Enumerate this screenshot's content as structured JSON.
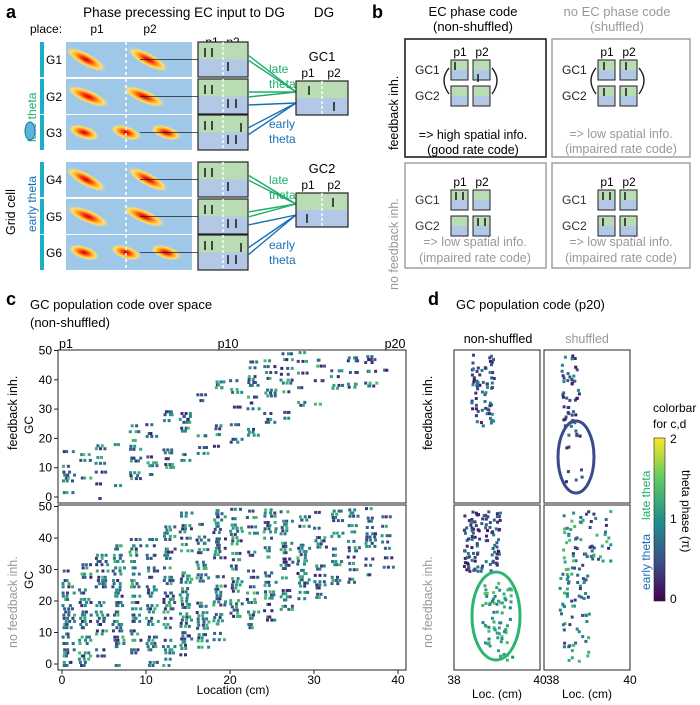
{
  "panel_a": {
    "label": "a",
    "title": "Phase precessing EC input to DG",
    "dg_title": "DG",
    "place_label": "place:",
    "p1": "p1",
    "p2": "p2",
    "grid_cell_label": "Grid cell",
    "early_theta": "early theta",
    "late_theta": "late theta",
    "groups": [
      "G1",
      "G2",
      "G3",
      "G4",
      "G5",
      "G6"
    ],
    "gc1": "GC1",
    "gc2": "GC2",
    "fan_late": "late theta",
    "fan_early": "early theta"
  },
  "panel_b": {
    "label": "b",
    "col1_title": "EC phase code",
    "col1_sub": "(non-shuffled)",
    "col2_title": "no EC phase code",
    "col2_sub": "(shuffled)",
    "row1_label": "feedback inh.",
    "row2_label": "no feedback inh.",
    "gc1": "GC1",
    "gc2": "GC2",
    "p1": "p1",
    "p2": "p2",
    "good_line1": "=> high spatial info.",
    "good_line2": "(good rate code)",
    "bad_line1": "=> low spatial info.",
    "bad_line2": "(impaired rate code)"
  },
  "panel_c": {
    "label": "c",
    "title": "GC population code over space",
    "subtitle": "(non-shuffled)",
    "top_marks": [
      "p1",
      "p10",
      "p20"
    ],
    "row1_label": "feedback inh.",
    "row2_label": "no feedback inh.",
    "ylabel": "GC",
    "xlabel": "Location (cm)",
    "xticks": [
      "0",
      "10",
      "20",
      "30",
      "40"
    ],
    "yticks": [
      "0",
      "10",
      "20",
      "30",
      "40",
      "50"
    ]
  },
  "panel_d": {
    "label": "d",
    "title": "GC population code (p20)",
    "col1": "non-shuffled",
    "col2": "shuffled",
    "xlabel": "Loc. (cm)",
    "xticks": [
      "38",
      "40"
    ],
    "colorbar_title1": "colorbar",
    "colorbar_title2": "for c,d",
    "colorbar_ticks": [
      "0",
      "1",
      "2"
    ],
    "colorbar_axis": "theta phase (π)",
    "colorbar_early": "early theta",
    "colorbar_late": "late theta"
  },
  "colors": {
    "green": "#1fad6a",
    "teal": "#23b9a8",
    "blue": "#1a6fb3",
    "gray": "#999999",
    "ellipse_blue": "#3b4a8a",
    "ellipse_green": "#2bb673",
    "box_green": "#b9dcb5",
    "box_blue": "#b3c8e6"
  },
  "chart_data": [
    {
      "type": "scatter",
      "title": "GC population code over space",
      "subtitle": "(non-shuffled)",
      "panels": [
        "feedback inh.",
        "no feedback inh."
      ],
      "xlabel": "Location (cm)",
      "ylabel": "GC",
      "xlim": [
        0,
        40
      ],
      "ylim": [
        0,
        50
      ],
      "xticks": [
        0,
        10,
        20,
        30,
        40
      ],
      "yticks": [
        0,
        10,
        20,
        30,
        40,
        50
      ],
      "color_encoding": "theta phase (π), 0 to 2"
    },
    {
      "type": "scatter",
      "title": "GC population code (p20)",
      "panels": [
        "non-shuffled / feedback inh.",
        "shuffled / feedback inh.",
        "non-shuffled / no feedback inh.",
        "shuffled / no feedback inh."
      ],
      "xlabel": "Loc. (cm)",
      "xlim": [
        38,
        40
      ],
      "xticks": [
        38,
        40
      ]
    },
    {
      "type": "heatmap",
      "title": "colorbar for c,d",
      "label": "theta phase (π)",
      "range": [
        0,
        2
      ],
      "ticks": [
        0,
        1,
        2
      ]
    }
  ]
}
